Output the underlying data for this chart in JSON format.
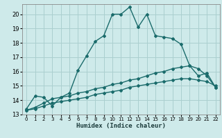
{
  "xlabel": "Humidex (Indice chaleur)",
  "background_color": "#ceeaea",
  "grid_color": "#aacfcf",
  "line_color": "#1a6b6b",
  "xlim": [
    -0.5,
    22.5
  ],
  "ylim": [
    13,
    20.7
  ],
  "yticks": [
    13,
    14,
    15,
    16,
    17,
    18,
    19,
    20
  ],
  "xticks": [
    0,
    1,
    2,
    3,
    4,
    5,
    6,
    7,
    8,
    9,
    10,
    11,
    12,
    13,
    14,
    15,
    16,
    17,
    18,
    19,
    20,
    21,
    22
  ],
  "series1_x": [
    0,
    1,
    2,
    3,
    4,
    5,
    6,
    7,
    8,
    9,
    10,
    11,
    12,
    13,
    14,
    15,
    16,
    17,
    18,
    19,
    20,
    21,
    22
  ],
  "series1_y": [
    13.4,
    14.3,
    14.2,
    13.6,
    14.2,
    14.5,
    16.1,
    17.1,
    18.1,
    18.5,
    20.0,
    20.0,
    20.5,
    19.1,
    20.0,
    18.5,
    18.4,
    18.3,
    17.9,
    16.4,
    15.7,
    15.9,
    14.9
  ],
  "series2_x": [
    0,
    1,
    2,
    3,
    4,
    5,
    6,
    7,
    8,
    9,
    10,
    11,
    12,
    13,
    14,
    15,
    16,
    17,
    18,
    19,
    20,
    21,
    22
  ],
  "series2_y": [
    13.3,
    13.5,
    13.8,
    14.1,
    14.2,
    14.3,
    14.5,
    14.6,
    14.8,
    14.9,
    15.1,
    15.2,
    15.4,
    15.5,
    15.7,
    15.9,
    16.0,
    16.2,
    16.3,
    16.4,
    16.2,
    15.7,
    14.9
  ],
  "series3_x": [
    0,
    1,
    2,
    3,
    4,
    5,
    6,
    7,
    8,
    9,
    10,
    11,
    12,
    13,
    14,
    15,
    16,
    17,
    18,
    19,
    20,
    21,
    22
  ],
  "series3_y": [
    13.3,
    13.4,
    13.6,
    13.8,
    13.9,
    14.0,
    14.1,
    14.2,
    14.4,
    14.5,
    14.6,
    14.7,
    14.9,
    15.0,
    15.1,
    15.2,
    15.3,
    15.4,
    15.5,
    15.5,
    15.4,
    15.3,
    15.0
  ],
  "marker": "D",
  "markersize": 2.0,
  "linewidth": 1.0
}
